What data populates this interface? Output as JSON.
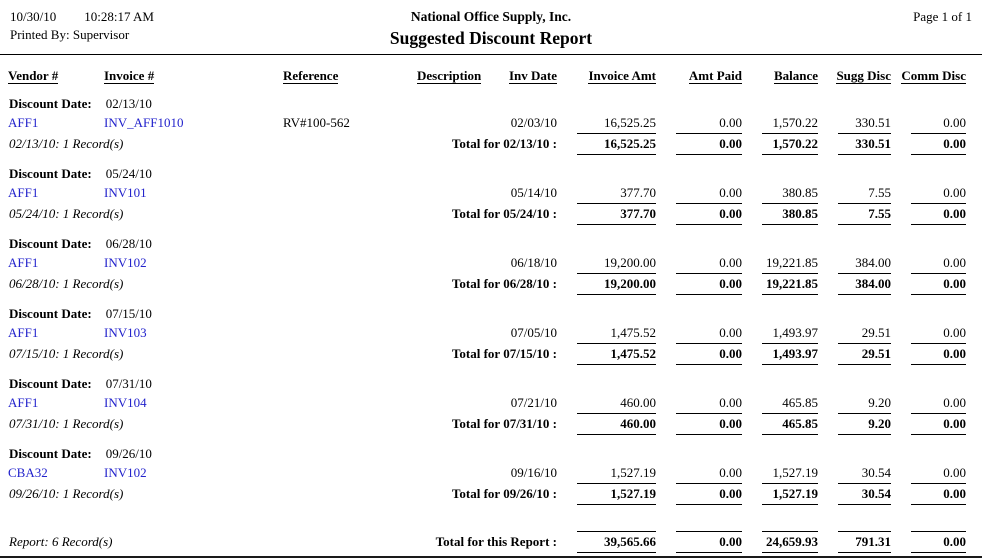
{
  "header": {
    "date": "10/30/10",
    "time": "10:28:17 AM",
    "printed_by": "Printed By: Supervisor",
    "company": "National Office Supply, Inc.",
    "title": "Suggested Discount Report",
    "page": "Page 1 of 1"
  },
  "columns": [
    "Vendor #",
    "Invoice #",
    "Reference",
    "Description",
    "Inv Date",
    "Invoice Amt",
    "Amt Paid",
    "Balance",
    "Sugg Disc",
    "Comm Disc"
  ],
  "link_color": "#2222cc",
  "groups": [
    {
      "label": "Discount Date:",
      "date": "02/13/10",
      "row": {
        "vendor": "AFF1",
        "invoice": "INV_AFF1010",
        "reference": "RV#100-562",
        "description": "",
        "inv_date": "02/03/10",
        "invoice_amt": "16,525.25",
        "amt_paid": "0.00",
        "balance": "1,570.22",
        "sugg_disc": "330.51",
        "comm_disc": "0.00"
      },
      "record_count": "02/13/10: 1 Record(s)",
      "total_label": "Total for 02/13/10 :",
      "totals": {
        "invoice_amt": "16,525.25",
        "amt_paid": "0.00",
        "balance": "1,570.22",
        "sugg_disc": "330.51",
        "comm_disc": "0.00"
      }
    },
    {
      "label": "Discount Date:",
      "date": "05/24/10",
      "row": {
        "vendor": "AFF1",
        "invoice": "INV101",
        "reference": "",
        "description": "",
        "inv_date": "05/14/10",
        "invoice_amt": "377.70",
        "amt_paid": "0.00",
        "balance": "380.85",
        "sugg_disc": "7.55",
        "comm_disc": "0.00"
      },
      "record_count": "05/24/10: 1 Record(s)",
      "total_label": "Total for 05/24/10 :",
      "totals": {
        "invoice_amt": "377.70",
        "amt_paid": "0.00",
        "balance": "380.85",
        "sugg_disc": "7.55",
        "comm_disc": "0.00"
      }
    },
    {
      "label": "Discount Date:",
      "date": "06/28/10",
      "row": {
        "vendor": "AFF1",
        "invoice": "INV102",
        "reference": "",
        "description": "",
        "inv_date": "06/18/10",
        "invoice_amt": "19,200.00",
        "amt_paid": "0.00",
        "balance": "19,221.85",
        "sugg_disc": "384.00",
        "comm_disc": "0.00"
      },
      "record_count": "06/28/10: 1 Record(s)",
      "total_label": "Total for 06/28/10 :",
      "totals": {
        "invoice_amt": "19,200.00",
        "amt_paid": "0.00",
        "balance": "19,221.85",
        "sugg_disc": "384.00",
        "comm_disc": "0.00"
      }
    },
    {
      "label": "Discount Date:",
      "date": "07/15/10",
      "row": {
        "vendor": "AFF1",
        "invoice": "INV103",
        "reference": "",
        "description": "",
        "inv_date": "07/05/10",
        "invoice_amt": "1,475.52",
        "amt_paid": "0.00",
        "balance": "1,493.97",
        "sugg_disc": "29.51",
        "comm_disc": "0.00"
      },
      "record_count": "07/15/10: 1 Record(s)",
      "total_label": "Total for 07/15/10 :",
      "totals": {
        "invoice_amt": "1,475.52",
        "amt_paid": "0.00",
        "balance": "1,493.97",
        "sugg_disc": "29.51",
        "comm_disc": "0.00"
      }
    },
    {
      "label": "Discount Date:",
      "date": "07/31/10",
      "row": {
        "vendor": "AFF1",
        "invoice": "INV104",
        "reference": "",
        "description": "",
        "inv_date": "07/21/10",
        "invoice_amt": "460.00",
        "amt_paid": "0.00",
        "balance": "465.85",
        "sugg_disc": "9.20",
        "comm_disc": "0.00"
      },
      "record_count": "07/31/10: 1 Record(s)",
      "total_label": "Total for 07/31/10 :",
      "totals": {
        "invoice_amt": "460.00",
        "amt_paid": "0.00",
        "balance": "465.85",
        "sugg_disc": "9.20",
        "comm_disc": "0.00"
      }
    },
    {
      "label": "Discount Date:",
      "date": "09/26/10",
      "row": {
        "vendor": "CBA32",
        "invoice": "INV102",
        "reference": "",
        "description": "",
        "inv_date": "09/16/10",
        "invoice_amt": "1,527.19",
        "amt_paid": "0.00",
        "balance": "1,527.19",
        "sugg_disc": "30.54",
        "comm_disc": "0.00"
      },
      "record_count": "09/26/10: 1 Record(s)",
      "total_label": "Total for 09/26/10 :",
      "totals": {
        "invoice_amt": "1,527.19",
        "amt_paid": "0.00",
        "balance": "1,527.19",
        "sugg_disc": "30.54",
        "comm_disc": "0.00"
      }
    }
  ],
  "footer": {
    "record_count": "Report: 6 Record(s)",
    "total_label": "Total for this Report :",
    "totals": {
      "invoice_amt": "39,565.66",
      "amt_paid": "0.00",
      "balance": "24,659.93",
      "sugg_disc": "791.31",
      "comm_disc": "0.00"
    }
  }
}
